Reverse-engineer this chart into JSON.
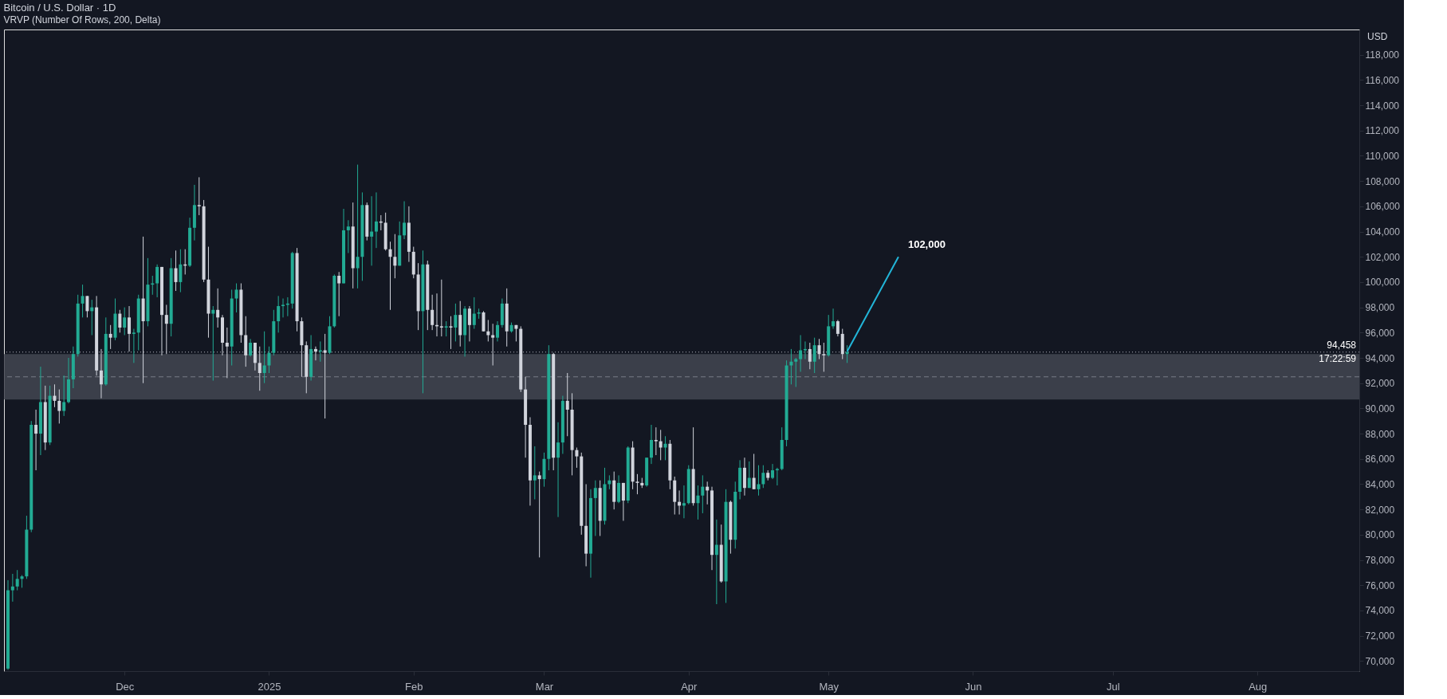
{
  "chart_data": {
    "type": "candlestick",
    "title": "Bitcoin / U.S. Dollar · 1D",
    "subtitle": "VRVP (Number Of Rows, 200, Delta)",
    "x": [
      "2024-11-06",
      "2024-11-07",
      "2024-11-08",
      "2024-11-09",
      "2024-11-10",
      "2024-11-11",
      "2024-11-12",
      "2024-11-13",
      "2024-11-14",
      "2024-11-15",
      "2024-11-16",
      "2024-11-17",
      "2024-11-18",
      "2024-11-19",
      "2024-11-20",
      "2024-11-21",
      "2024-11-22",
      "2024-11-23",
      "2024-11-24",
      "2024-11-25",
      "2024-11-26",
      "2024-11-27",
      "2024-11-28",
      "2024-11-29",
      "2024-11-30",
      "2024-12-01",
      "2024-12-02",
      "2024-12-03",
      "2024-12-04",
      "2024-12-05",
      "2024-12-06",
      "2024-12-07",
      "2024-12-08",
      "2024-12-09",
      "2024-12-10",
      "2024-12-11",
      "2024-12-12",
      "2024-12-13",
      "2024-12-14",
      "2024-12-15",
      "2024-12-16",
      "2024-12-17",
      "2024-12-18",
      "2024-12-19",
      "2024-12-20",
      "2024-12-21",
      "2024-12-22",
      "2024-12-23",
      "2024-12-24",
      "2024-12-25",
      "2024-12-26",
      "2024-12-27",
      "2024-12-28",
      "2024-12-29",
      "2024-12-30",
      "2024-12-31",
      "2025-01-01",
      "2025-01-02",
      "2025-01-03",
      "2025-01-04",
      "2025-01-05",
      "2025-01-06",
      "2025-01-07",
      "2025-01-08",
      "2025-01-09",
      "2025-01-10",
      "2025-01-11",
      "2025-01-12",
      "2025-01-13",
      "2025-01-14",
      "2025-01-15",
      "2025-01-16",
      "2025-01-17",
      "2025-01-18",
      "2025-01-19",
      "2025-01-20",
      "2025-01-21",
      "2025-01-22",
      "2025-01-23",
      "2025-01-24",
      "2025-01-25",
      "2025-01-26",
      "2025-01-27",
      "2025-01-28",
      "2025-01-29",
      "2025-01-30",
      "2025-01-31",
      "2025-02-01",
      "2025-02-02",
      "2025-02-03",
      "2025-02-04",
      "2025-02-05",
      "2025-02-06",
      "2025-02-07",
      "2025-02-08",
      "2025-02-09",
      "2025-02-10",
      "2025-02-11",
      "2025-02-12",
      "2025-02-13",
      "2025-02-14",
      "2025-02-15",
      "2025-02-16",
      "2025-02-17",
      "2025-02-18",
      "2025-02-19",
      "2025-02-20",
      "2025-02-21",
      "2025-02-22",
      "2025-02-23",
      "2025-02-24",
      "2025-02-25",
      "2025-02-26",
      "2025-02-27",
      "2025-02-28",
      "2025-03-01",
      "2025-03-02",
      "2025-03-03",
      "2025-03-04",
      "2025-03-05",
      "2025-03-06",
      "2025-03-07",
      "2025-03-08",
      "2025-03-09",
      "2025-03-10",
      "2025-03-11",
      "2025-03-12",
      "2025-03-13",
      "2025-03-14",
      "2025-03-15",
      "2025-03-16",
      "2025-03-17",
      "2025-03-18",
      "2025-03-19",
      "2025-03-20",
      "2025-03-21",
      "2025-03-22",
      "2025-03-23",
      "2025-03-24",
      "2025-03-25",
      "2025-03-26",
      "2025-03-27",
      "2025-03-28",
      "2025-03-29",
      "2025-03-30",
      "2025-03-31",
      "2025-04-01",
      "2025-04-02",
      "2025-04-03",
      "2025-04-04",
      "2025-04-05",
      "2025-04-06",
      "2025-04-07",
      "2025-04-08",
      "2025-04-09",
      "2025-04-10",
      "2025-04-11",
      "2025-04-12",
      "2025-04-13",
      "2025-04-14",
      "2025-04-15",
      "2025-04-16",
      "2025-04-17",
      "2025-04-18",
      "2025-04-19",
      "2025-04-20",
      "2025-04-21",
      "2025-04-22",
      "2025-04-23",
      "2025-04-24",
      "2025-04-25",
      "2025-04-26",
      "2025-04-27",
      "2025-04-28",
      "2025-04-29",
      "2025-04-30",
      "2025-05-01",
      "2025-05-02",
      "2025-05-03",
      "2025-05-04",
      "2025-05-05"
    ],
    "ohlc": [
      [
        69400,
        76400,
        69300,
        75600
      ],
      [
        75600,
        76900,
        74700,
        75900
      ],
      [
        75900,
        77200,
        75600,
        76500
      ],
      [
        76500,
        76800,
        75800,
        76700
      ],
      [
        76700,
        81500,
        76500,
        80400
      ],
      [
        80400,
        89000,
        80200,
        88700
      ],
      [
        88700,
        89900,
        85100,
        88000
      ],
      [
        88000,
        93300,
        86300,
        90500
      ],
      [
        90500,
        91800,
        86700,
        87300
      ],
      [
        87300,
        91800,
        87100,
        91000
      ],
      [
        91000,
        91900,
        90100,
        90600
      ],
      [
        90600,
        91500,
        88800,
        89800
      ],
      [
        89800,
        92600,
        89400,
        90500
      ],
      [
        90500,
        94000,
        90400,
        92300
      ],
      [
        92300,
        94900,
        91600,
        94300
      ],
      [
        94300,
        99000,
        94100,
        98300
      ],
      [
        98300,
        99800,
        97200,
        98900
      ],
      [
        98900,
        98900,
        97200,
        97700
      ],
      [
        97700,
        98600,
        95800,
        98000
      ],
      [
        98000,
        98900,
        92600,
        93000
      ],
      [
        93000,
        94700,
        90800,
        91900
      ],
      [
        91900,
        97200,
        91800,
        95900
      ],
      [
        95900,
        96600,
        94700,
        95600
      ],
      [
        95600,
        98700,
        95400,
        97500
      ],
      [
        97500,
        97800,
        96000,
        96400
      ],
      [
        96400,
        98000,
        95800,
        97200
      ],
      [
        97200,
        98100,
        94500,
        95900
      ],
      [
        95900,
        96300,
        93600,
        96000
      ],
      [
        96000,
        99000,
        94600,
        98700
      ],
      [
        98700,
        103600,
        92000,
        96900
      ],
      [
        96900,
        101900,
        96500,
        99800
      ],
      [
        99800,
        100500,
        99000,
        99900
      ],
      [
        99900,
        101400,
        98800,
        101200
      ],
      [
        101200,
        101200,
        94200,
        97400
      ],
      [
        97400,
        98200,
        94300,
        96700
      ],
      [
        96700,
        101900,
        95700,
        101100
      ],
      [
        101100,
        102500,
        99300,
        100000
      ],
      [
        100000,
        102600,
        99200,
        101400
      ],
      [
        101400,
        102600,
        100600,
        101300
      ],
      [
        101300,
        105100,
        101200,
        104300
      ],
      [
        104300,
        107700,
        103300,
        106100
      ],
      [
        106100,
        108300,
        105300,
        106000
      ],
      [
        106000,
        106500,
        100000,
        100200
      ],
      [
        100200,
        102800,
        95600,
        97500
      ],
      [
        97500,
        98100,
        92200,
        97800
      ],
      [
        97800,
        99500,
        96400,
        97200
      ],
      [
        97200,
        97400,
        94200,
        95200
      ],
      [
        95200,
        96400,
        92400,
        94900
      ],
      [
        94900,
        99400,
        93400,
        98700
      ],
      [
        98700,
        99900,
        97600,
        99400
      ],
      [
        99400,
        99900,
        95200,
        95800
      ],
      [
        95800,
        97300,
        93300,
        94200
      ],
      [
        94200,
        95500,
        94100,
        95200
      ],
      [
        95200,
        95200,
        93000,
        93600
      ],
      [
        93600,
        94900,
        91400,
        92800
      ],
      [
        92800,
        96100,
        92000,
        93400
      ],
      [
        93400,
        94900,
        92800,
        94400
      ],
      [
        94400,
        97800,
        94200,
        96900
      ],
      [
        96900,
        98900,
        96000,
        98100
      ],
      [
        98100,
        98700,
        97200,
        98200
      ],
      [
        98200,
        98800,
        97300,
        98300
      ],
      [
        98300,
        102400,
        97900,
        102300
      ],
      [
        102300,
        102700,
        96100,
        96900
      ],
      [
        96900,
        97200,
        92500,
        95000
      ],
      [
        95000,
        95300,
        91200,
        92500
      ],
      [
        92500,
        95800,
        92200,
        94700
      ],
      [
        94700,
        94900,
        93800,
        94500
      ],
      [
        94500,
        95300,
        93700,
        94600
      ],
      [
        94600,
        95900,
        89200,
        94400
      ],
      [
        94400,
        97300,
        94300,
        96500
      ],
      [
        96500,
        100600,
        96400,
        100500
      ],
      [
        100500,
        100800,
        97300,
        99900
      ],
      [
        99900,
        105800,
        99900,
        104100
      ],
      [
        104100,
        104900,
        102300,
        104400
      ],
      [
        104400,
        106300,
        99500,
        101100
      ],
      [
        101100,
        109300,
        99500,
        102000
      ],
      [
        102000,
        107100,
        100100,
        106100
      ],
      [
        106100,
        106300,
        103300,
        103600
      ],
      [
        103600,
        106800,
        101300,
        104000
      ],
      [
        104000,
        107100,
        102700,
        104800
      ],
      [
        104800,
        105300,
        104100,
        104700
      ],
      [
        104700,
        105500,
        102500,
        102600
      ],
      [
        102600,
        103200,
        97800,
        102000
      ],
      [
        102000,
        103800,
        100300,
        101300
      ],
      [
        101300,
        104800,
        101300,
        103700
      ],
      [
        103700,
        106400,
        103400,
        104700
      ],
      [
        104700,
        106000,
        101600,
        102400
      ],
      [
        102400,
        102800,
        100300,
        100600
      ],
      [
        100600,
        101500,
        96200,
        97700
      ],
      [
        97700,
        102500,
        91200,
        101400
      ],
      [
        101400,
        101700,
        96200,
        97800
      ],
      [
        97800,
        99000,
        96200,
        96600
      ],
      [
        96600,
        99100,
        95700,
        96500
      ],
      [
        96500,
        100200,
        95700,
        96400
      ],
      [
        96400,
        96900,
        95700,
        96500
      ],
      [
        96500,
        97300,
        94700,
        96400
      ],
      [
        96400,
        98300,
        95300,
        97400
      ],
      [
        97400,
        98500,
        94900,
        95800
      ],
      [
        95800,
        98100,
        94100,
        97900
      ],
      [
        97900,
        98100,
        95300,
        96600
      ],
      [
        96600,
        98800,
        96300,
        97500
      ],
      [
        97500,
        97900,
        97100,
        97600
      ],
      [
        97600,
        97700,
        96100,
        96100
      ],
      [
        96100,
        97000,
        95300,
        95800
      ],
      [
        95800,
        96700,
        93400,
        95600
      ],
      [
        95600,
        96900,
        95300,
        96600
      ],
      [
        96600,
        98700,
        96400,
        98300
      ],
      [
        98300,
        99500,
        94900,
        96100
      ],
      [
        96100,
        96800,
        96000,
        96600
      ],
      [
        96600,
        96600,
        95300,
        96300
      ],
      [
        96300,
        96500,
        91300,
        91500
      ],
      [
        91500,
        92500,
        86100,
        88700
      ],
      [
        88700,
        89300,
        82300,
        84300
      ],
      [
        84300,
        87000,
        82800,
        84700
      ],
      [
        84700,
        85000,
        78200,
        84400
      ],
      [
        84400,
        86500,
        83800,
        86000
      ],
      [
        86000,
        95000,
        85100,
        94300
      ],
      [
        94300,
        94400,
        85100,
        86100
      ],
      [
        86100,
        88900,
        81400,
        87300
      ],
      [
        87300,
        91000,
        86400,
        90600
      ],
      [
        90600,
        92800,
        87800,
        89900
      ],
      [
        89900,
        91200,
        84700,
        86700
      ],
      [
        86700,
        86900,
        85300,
        86200
      ],
      [
        86200,
        86500,
        80000,
        80700
      ],
      [
        80700,
        84000,
        77500,
        78500
      ],
      [
        78500,
        83600,
        76600,
        82900
      ],
      [
        82900,
        84300,
        79900,
        83700
      ],
      [
        83700,
        84300,
        79900,
        81100
      ],
      [
        81100,
        85300,
        80800,
        84000
      ],
      [
        84000,
        84700,
        83600,
        84300
      ],
      [
        84300,
        85000,
        82000,
        82600
      ],
      [
        82600,
        84700,
        82500,
        84100
      ],
      [
        84100,
        84100,
        81100,
        82700
      ],
      [
        82700,
        87000,
        82500,
        86900
      ],
      [
        86900,
        87400,
        83600,
        84200
      ],
      [
        84200,
        84800,
        83200,
        84100
      ],
      [
        84100,
        84500,
        83700,
        83900
      ],
      [
        83900,
        86100,
        83800,
        86100
      ],
      [
        86100,
        88700,
        85600,
        87500
      ],
      [
        87500,
        88500,
        86300,
        87400
      ],
      [
        87400,
        88300,
        85900,
        86900
      ],
      [
        86900,
        87800,
        85900,
        87200
      ],
      [
        87200,
        87500,
        83600,
        84300
      ],
      [
        84300,
        84600,
        81600,
        82600
      ],
      [
        82600,
        83500,
        81600,
        82300
      ],
      [
        82300,
        83900,
        81300,
        82500
      ],
      [
        82500,
        85500,
        82400,
        85200
      ],
      [
        85200,
        88500,
        82300,
        82500
      ],
      [
        82500,
        83900,
        81200,
        83100
      ],
      [
        83100,
        84700,
        81700,
        83800
      ],
      [
        83800,
        84200,
        82400,
        83500
      ],
      [
        83500,
        83800,
        77200,
        78400
      ],
      [
        78400,
        81200,
        74500,
        79200
      ],
      [
        79200,
        80800,
        76200,
        76300
      ],
      [
        76300,
        83600,
        74600,
        82600
      ],
      [
        82600,
        82700,
        78500,
        79600
      ],
      [
        79600,
        84200,
        78900,
        83400
      ],
      [
        83400,
        85900,
        82800,
        85300
      ],
      [
        85300,
        86100,
        83100,
        83700
      ],
      [
        83700,
        85800,
        83700,
        84500
      ],
      [
        84500,
        86400,
        83600,
        83600
      ],
      [
        83600,
        85500,
        83100,
        84000
      ],
      [
        84000,
        85500,
        83700,
        84900
      ],
      [
        84900,
        85100,
        84300,
        84500
      ],
      [
        84500,
        85600,
        84400,
        85100
      ],
      [
        85100,
        85300,
        83900,
        85200
      ],
      [
        85200,
        88500,
        85100,
        87500
      ],
      [
        87500,
        93800,
        87000,
        93400
      ],
      [
        93400,
        94700,
        91900,
        93700
      ],
      [
        93700,
        94000,
        91700,
        93900
      ],
      [
        93900,
        95800,
        92900,
        94600
      ],
      [
        94600,
        95300,
        93900,
        94700
      ],
      [
        94700,
        95200,
        93100,
        93700
      ],
      [
        93700,
        95600,
        92800,
        95000
      ],
      [
        95000,
        95500,
        93900,
        94300
      ],
      [
        94300,
        95200,
        92900,
        94200
      ],
      [
        94200,
        97400,
        94100,
        96500
      ],
      [
        96500,
        97900,
        96300,
        96900
      ],
      [
        96900,
        97000,
        95700,
        95900
      ],
      [
        95900,
        96300,
        93900,
        94300
      ],
      [
        94300,
        95000,
        93600,
        94458
      ]
    ],
    "colors": [
      "#22ab94",
      "#22ab94",
      "#22ab94",
      "#22ab94",
      "#22ab94",
      "#22ab94",
      "#d1d4dc",
      "#22ab94",
      "#d1d4dc",
      "#22ab94",
      "#d1d4dc",
      "#d1d4dc",
      "#22ab94",
      "#22ab94",
      "#22ab94",
      "#22ab94",
      "#22ab94",
      "#d1d4dc",
      "#22ab94",
      "#d1d4dc",
      "#d1d4dc",
      "#22ab94",
      "#d1d4dc",
      "#22ab94",
      "#d1d4dc",
      "#22ab94",
      "#d1d4dc",
      "#22ab94",
      "#22ab94",
      "#d1d4dc",
      "#22ab94",
      "#22ab94",
      "#22ab94",
      "#d1d4dc",
      "#d1d4dc",
      "#22ab94",
      "#d1d4dc",
      "#22ab94",
      "#d1d4dc",
      "#22ab94",
      "#22ab94",
      "#d1d4dc",
      "#d1d4dc",
      "#d1d4dc",
      "#22ab94",
      "#d1d4dc",
      "#d1d4dc",
      "#d1d4dc",
      "#22ab94",
      "#22ab94",
      "#d1d4dc",
      "#d1d4dc",
      "#22ab94",
      "#d1d4dc",
      "#d1d4dc",
      "#22ab94",
      "#22ab94",
      "#22ab94",
      "#22ab94",
      "#22ab94",
      "#22ab94",
      "#22ab94",
      "#d1d4dc",
      "#d1d4dc",
      "#d1d4dc",
      "#22ab94",
      "#d1d4dc",
      "#22ab94",
      "#d1d4dc",
      "#22ab94",
      "#22ab94",
      "#d1d4dc",
      "#22ab94",
      "#22ab94",
      "#d1d4dc",
      "#22ab94",
      "#22ab94",
      "#d1d4dc",
      "#22ab94",
      "#22ab94",
      "#d1d4dc",
      "#d1d4dc",
      "#d1d4dc",
      "#d1d4dc",
      "#22ab94",
      "#22ab94",
      "#d1d4dc",
      "#d1d4dc",
      "#d1d4dc",
      "#22ab94",
      "#d1d4dc",
      "#d1d4dc",
      "#d1d4dc",
      "#d1d4dc",
      "#22ab94",
      "#d1d4dc",
      "#22ab94",
      "#d1d4dc",
      "#22ab94",
      "#d1d4dc",
      "#22ab94",
      "#22ab94",
      "#d1d4dc",
      "#d1d4dc",
      "#d1d4dc",
      "#22ab94",
      "#22ab94",
      "#d1d4dc",
      "#22ab94",
      "#d1d4dc",
      "#d1d4dc",
      "#d1d4dc",
      "#d1d4dc",
      "#22ab94",
      "#d1d4dc",
      "#22ab94",
      "#22ab94",
      "#d1d4dc",
      "#22ab94",
      "#22ab94",
      "#d1d4dc",
      "#d1d4dc",
      "#d1d4dc",
      "#d1d4dc",
      "#d1d4dc",
      "#22ab94",
      "#22ab94",
      "#d1d4dc",
      "#22ab94",
      "#22ab94",
      "#d1d4dc",
      "#22ab94",
      "#d1d4dc",
      "#22ab94",
      "#d1d4dc",
      "#d1d4dc",
      "#d1d4dc",
      "#22ab94",
      "#22ab94",
      "#d1d4dc",
      "#d1d4dc",
      "#22ab94",
      "#d1d4dc",
      "#d1d4dc",
      "#d1d4dc",
      "#22ab94",
      "#22ab94",
      "#d1d4dc",
      "#22ab94",
      "#22ab94",
      "#d1d4dc",
      "#d1d4dc",
      "#22ab94",
      "#d1d4dc",
      "#22ab94",
      "#d1d4dc",
      "#22ab94",
      "#22ab94",
      "#d1d4dc",
      "#22ab94",
      "#d1d4dc",
      "#22ab94",
      "#22ab94",
      "#d1d4dc",
      "#22ab94",
      "#22ab94",
      "#22ab94",
      "#22ab94",
      "#22ab94",
      "#22ab94",
      "#22ab94",
      "#22ab94",
      "#d1d4dc",
      "#22ab94",
      "#d1d4dc",
      "#d1d4dc",
      "#22ab94",
      "#22ab94",
      "#d1d4dc",
      "#d1d4dc",
      "#22ab94"
    ],
    "xlim": [
      "2024-11-06",
      "2025-08-22"
    ],
    "xticks": [
      {
        "value": "2024-12-01",
        "label": "Dec"
      },
      {
        "value": "2025-01-01",
        "label": "2025"
      },
      {
        "value": "2025-02-01",
        "label": "Feb"
      },
      {
        "value": "2025-03-01",
        "label": "Mar"
      },
      {
        "value": "2025-04-01",
        "label": "Apr"
      },
      {
        "value": "2025-05-01",
        "label": "May"
      },
      {
        "value": "2025-06-01",
        "label": "Jun"
      },
      {
        "value": "2025-07-01",
        "label": "Jul"
      },
      {
        "value": "2025-08-01",
        "label": "Aug"
      }
    ],
    "ylim": [
      69200,
      120000
    ],
    "yticks": [
      {
        "value": 70000,
        "label": "70,000"
      },
      {
        "value": 72000,
        "label": "72,000"
      },
      {
        "value": 74000,
        "label": "74,000"
      },
      {
        "value": 76000,
        "label": "76,000"
      },
      {
        "value": 78000,
        "label": "78,000"
      },
      {
        "value": 80000,
        "label": "80,000"
      },
      {
        "value": 82000,
        "label": "82,000"
      },
      {
        "value": 84000,
        "label": "84,000"
      },
      {
        "value": 86000,
        "label": "86,000"
      },
      {
        "value": 88000,
        "label": "88,000"
      },
      {
        "value": 90000,
        "label": "90,000"
      },
      {
        "value": 92000,
        "label": "92,000"
      },
      {
        "value": 94000,
        "label": "94,000"
      },
      {
        "value": 96000,
        "label": "96,000"
      },
      {
        "value": 98000,
        "label": "98,000"
      },
      {
        "value": 100000,
        "label": "100,000"
      },
      {
        "value": 102000,
        "label": "102,000"
      },
      {
        "value": 104000,
        "label": "104,000"
      },
      {
        "value": 106000,
        "label": "106,000"
      },
      {
        "value": 108000,
        "label": "108,000"
      },
      {
        "value": 110000,
        "label": "110,000"
      },
      {
        "value": 112000,
        "label": "112,000"
      },
      {
        "value": 114000,
        "label": "114,000"
      },
      {
        "value": 116000,
        "label": "116,000"
      },
      {
        "value": 118000,
        "label": "118,000"
      }
    ],
    "series": [
      {
        "type": "line",
        "color": "#22b5d8",
        "x": [
          "2025-05-05",
          "2025-05-16"
        ],
        "values": [
          94500,
          102000
        ]
      }
    ],
    "bands": [
      {
        "axis": "y",
        "from": 90700,
        "to": 94300,
        "color": "#434651"
      }
    ],
    "ref_lines": [
      {
        "axis": "y",
        "value": 94458,
        "label": "94,458",
        "line_style": "dotted",
        "color": "#b2b5be"
      },
      {
        "axis": "y",
        "value": 92500,
        "line_style": "dashed",
        "color": "#787b86"
      }
    ],
    "annotations": [
      {
        "text": "102,000",
        "x": "2025-05-16",
        "y": 102000
      },
      "USD",
      "17:22:59"
    ]
  }
}
